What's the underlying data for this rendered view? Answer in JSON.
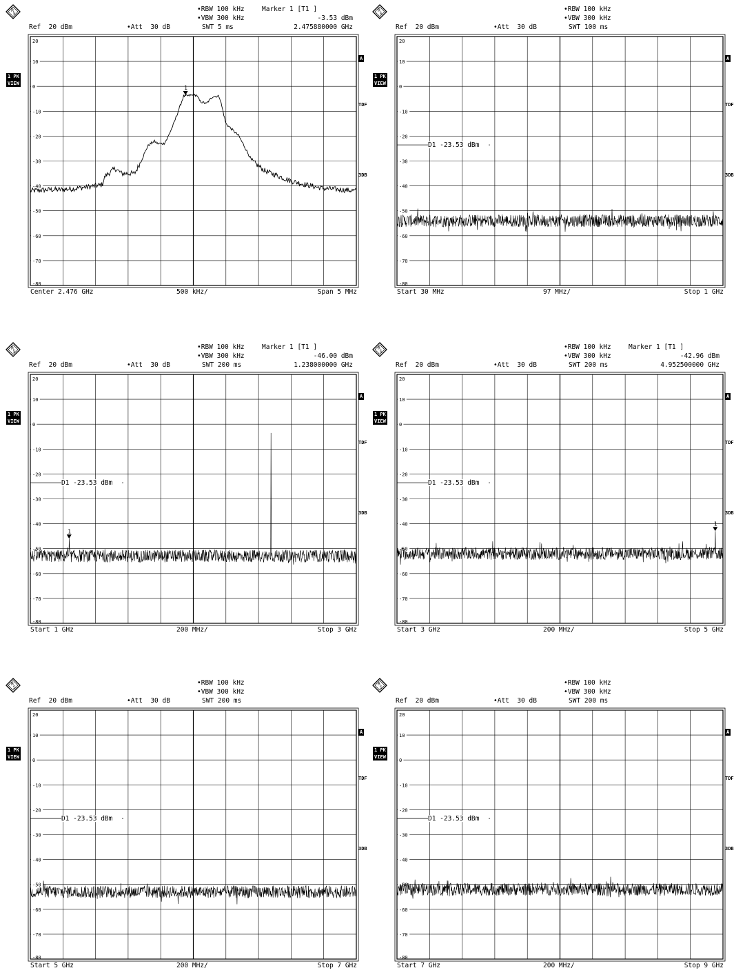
{
  "colors": {
    "trace": "#000000",
    "grid": "#000000",
    "background": "#ffffff"
  },
  "logo_icon": "rohde-schwarz-logo-icon",
  "chart_data": [
    {
      "type": "line",
      "header": {
        "rbw": "RBW 100 kHz",
        "vbw": "VBW 300 kHz",
        "swt": "SWT 5 ms",
        "ref": "Ref  20 dBm",
        "att": "Att  30 dB",
        "marker_title": "Marker 1 [T1 ]",
        "marker_level": "-3.53 dBm",
        "marker_freq": "2.475880000 GHz"
      },
      "side": {
        "trace": "1 PK",
        "view": "VIEW",
        "a": "A",
        "tdf": "TDF",
        "db3": "3DB"
      },
      "footer": {
        "left": "Center 2.476 GHz",
        "mid": "500 kHz/",
        "right": "Span 5 MHz"
      },
      "y_ticks": [
        "20",
        "10",
        "0",
        "-10",
        "-20",
        "-30",
        "-40",
        "-50",
        "-60",
        "-70",
        "-80"
      ],
      "ylim": [
        -80,
        20
      ],
      "xlim": [
        2.4735,
        2.4785
      ],
      "x_unit": "GHz",
      "display_line": null,
      "marker": {
        "x": 2.47588,
        "y": -3.53,
        "label": "1"
      },
      "series": [
        {
          "x": [
            2.4735,
            2.4738,
            2.474,
            2.4742,
            2.4745,
            2.4746,
            2.47465,
            2.4748,
            2.47485,
            2.4749,
            2.4751,
            2.4752,
            2.4753,
            2.4754,
            2.47545,
            2.47555,
            2.4756,
            2.4757,
            2.47585,
            2.476,
            2.47605,
            2.4761,
            2.4762,
            2.4763,
            2.4764,
            2.4765,
            2.4767,
            2.4768,
            2.4769,
            2.4771,
            2.4773,
            2.4775,
            2.4778,
            2.478,
            2.4785
          ],
          "y": [
            -42,
            -41.5,
            -41.5,
            -41,
            -40,
            -39.5,
            -36,
            -33,
            -34,
            -35,
            -35,
            -30,
            -24,
            -22,
            -23,
            -23,
            -21,
            -15,
            -4,
            -3.53,
            -3.5,
            -6,
            -7,
            -4,
            -4,
            -15,
            -20,
            -25,
            -30,
            -34,
            -36,
            -38,
            -40,
            -41,
            -42
          ]
        }
      ]
    },
    {
      "type": "line",
      "header": {
        "rbw": "RBW 100 kHz",
        "vbw": "VBW 300 kHz",
        "swt": "SWT 100 ms",
        "ref": "Ref  20 dBm",
        "att": "Att  30 dB"
      },
      "side": {
        "trace": "1 PK",
        "view": "VIEW",
        "a": "A",
        "tdf": "TDF",
        "db3": "3DB"
      },
      "footer": {
        "left": "Start 30 MHz",
        "mid": "97 MHz/",
        "right": "Stop 1 GHz"
      },
      "y_ticks": [
        "20",
        "10",
        "0",
        "-10",
        "-20",
        "-30",
        "-40",
        "-50",
        "-60",
        "-70",
        "-80"
      ],
      "ylim": [
        -80,
        20
      ],
      "xlim": [
        0.03,
        1.0
      ],
      "x_unit": "GHz",
      "display_line": {
        "value": -23.53,
        "label": "D1 -23.53 dBm"
      },
      "noise_floor": -54,
      "series": []
    },
    {
      "type": "line",
      "header": {
        "rbw": "RBW 100 kHz",
        "vbw": "VBW 300 kHz",
        "swt": "SWT 200 ms",
        "ref": "Ref  20 dBm",
        "att": "Att  30 dB",
        "marker_title": "Marker 1 [T1 ]",
        "marker_level": "-46.00 dBm",
        "marker_freq": "1.238000000 GHz"
      },
      "side": {
        "trace": "1 PK",
        "view": "VIEW",
        "a": "A",
        "tdf": "TDF",
        "db3": "3DB"
      },
      "footer": {
        "left": "Start 1 GHz",
        "mid": "200 MHz/",
        "right": "Stop 3 GHz"
      },
      "y_ticks": [
        "20",
        "10",
        "0",
        "-10",
        "-20",
        "-30",
        "-40",
        "-50",
        "-60",
        "-70",
        "-80"
      ],
      "ylim": [
        -80,
        20
      ],
      "xlim": [
        1.0,
        3.0
      ],
      "x_unit": "GHz",
      "display_line": {
        "value": -23.53,
        "label": "D1 -23.53 dBm"
      },
      "noise_floor": -53,
      "marker": {
        "x": 1.238,
        "y": -46.0,
        "label": "1"
      },
      "spikes": [
        {
          "x": 2.476,
          "y": -3.53
        },
        {
          "x": 1.238,
          "y": -46.0
        }
      ],
      "series": []
    },
    {
      "type": "line",
      "header": {
        "rbw": "RBW 100 kHz",
        "vbw": "VBW 300 kHz",
        "swt": "SWT 200 ms",
        "ref": "Ref  20 dBm",
        "att": "Att  30 dB",
        "marker_title": "Marker 1 [T1 ]",
        "marker_level": "-42.96 dBm",
        "marker_freq": "4.952500000 GHz"
      },
      "side": {
        "trace": "1 PK",
        "view": "VIEW",
        "a": "A",
        "tdf": "TDF",
        "db3": "3DB"
      },
      "footer": {
        "left": "Start 3 GHz",
        "mid": "200 MHz/",
        "right": "Stop 5 GHz"
      },
      "y_ticks": [
        "20",
        "10",
        "0",
        "-10",
        "-20",
        "-30",
        "-40",
        "-50",
        "-60",
        "-70",
        "-80"
      ],
      "ylim": [
        -80,
        20
      ],
      "xlim": [
        3.0,
        5.0
      ],
      "x_unit": "GHz",
      "display_line": {
        "value": -23.53,
        "label": "D1 -23.53 dBm"
      },
      "noise_floor": -52,
      "marker": {
        "x": 4.9525,
        "y": -42.96,
        "label": "1"
      },
      "spikes": [
        {
          "x": 4.9525,
          "y": -42.96
        }
      ],
      "series": []
    },
    {
      "type": "line",
      "header": {
        "rbw": "RBW 100 kHz",
        "vbw": "VBW 300 kHz",
        "swt": "SWT 200 ms",
        "ref": "Ref  20 dBm",
        "att": "Att  30 dB"
      },
      "side": {
        "trace": "1 PK",
        "view": "VIEW",
        "a": "A",
        "tdf": "TDF",
        "db3": "3DB"
      },
      "footer": {
        "left": "Start 5 GHz",
        "mid": "200 MHz/",
        "right": "Stop 7 GHz"
      },
      "y_ticks": [
        "20",
        "10",
        "0",
        "-10",
        "-20",
        "-30",
        "-40",
        "-50",
        "-60",
        "-70",
        "-80"
      ],
      "ylim": [
        -80,
        20
      ],
      "xlim": [
        5.0,
        7.0
      ],
      "x_unit": "GHz",
      "display_line": {
        "value": -23.53,
        "label": "D1 -23.53 dBm"
      },
      "noise_floor": -53,
      "series": []
    },
    {
      "type": "line",
      "header": {
        "rbw": "RBW 100 kHz",
        "vbw": "VBW 300 kHz",
        "swt": "SWT 200 ms",
        "ref": "Ref  20 dBm",
        "att": "Att  30 dB"
      },
      "side": {
        "trace": "1 PK",
        "view": "VIEW",
        "a": "A",
        "tdf": "TDF",
        "db3": "3DB"
      },
      "footer": {
        "left": "Start 7 GHz",
        "mid": "200 MHz/",
        "right": "Stop 9 GHz"
      },
      "y_ticks": [
        "20",
        "10",
        "0",
        "-10",
        "-20",
        "-30",
        "-40",
        "-50",
        "-60",
        "-70",
        "-80"
      ],
      "ylim": [
        -80,
        20
      ],
      "xlim": [
        7.0,
        9.0
      ],
      "x_unit": "GHz",
      "display_line": {
        "value": -23.53,
        "label": "D1 -23.53 dBm"
      },
      "noise_floor": -52,
      "series": []
    }
  ]
}
